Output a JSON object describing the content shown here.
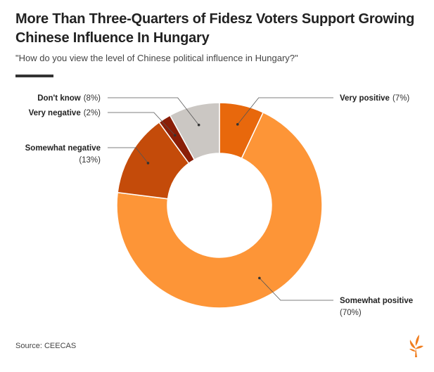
{
  "title": "More Than Three-Quarters of Fidesz Voters Support Growing Chinese Influence In Hungary",
  "subtitle": "\"How do you view the level of Chinese political influence in Hungary?\"",
  "source": "Source: CEECAS",
  "chart_data": {
    "type": "pie",
    "donut": true,
    "title": "More Than Three-Quarters of Fidesz Voters Support Growing Chinese Influence In Hungary",
    "subtitle": "\"How do you view the level of Chinese political influence in Hungary?\"",
    "categories": [
      "Very positive",
      "Somewhat positive",
      "Somewhat negative",
      "Very negative",
      "Don't know"
    ],
    "values": [
      7,
      70,
      13,
      2,
      8
    ],
    "value_labels": [
      "(7%)",
      "(70%)",
      "(13%)",
      "(2%)",
      "(8%)"
    ],
    "colors": [
      "#e8680c",
      "#fd9537",
      "#c44b0a",
      "#8a1e07",
      "#cbc7c3"
    ],
    "legend": "none"
  }
}
